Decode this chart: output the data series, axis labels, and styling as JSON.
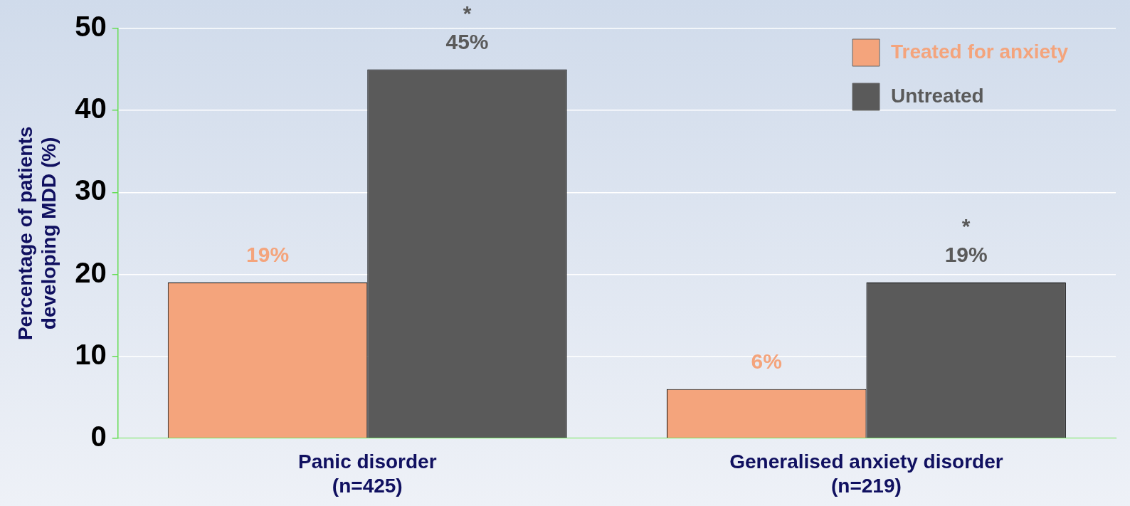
{
  "chart_data": {
    "type": "bar",
    "ylabel": "Percentage of patients\ndeveloping MDD (%)",
    "categories": [
      "Panic disorder\n(n=425)",
      "Generalised anxiety disorder\n(n=219)"
    ],
    "series": [
      {
        "name": "Treated for anxiety",
        "color": "#f4a47c",
        "values": [
          19,
          6
        ],
        "value_labels": [
          "19%",
          "6%"
        ]
      },
      {
        "name": "Untreated",
        "color": "#5a5a5a",
        "values": [
          45,
          19
        ],
        "value_labels": [
          "45%",
          "19%"
        ]
      }
    ],
    "annotations": [
      "*",
      "*"
    ],
    "ylim": [
      0,
      50
    ],
    "yticks": [
      0,
      10,
      20,
      30,
      40,
      50
    ],
    "grid": "y",
    "legend": "top right"
  }
}
